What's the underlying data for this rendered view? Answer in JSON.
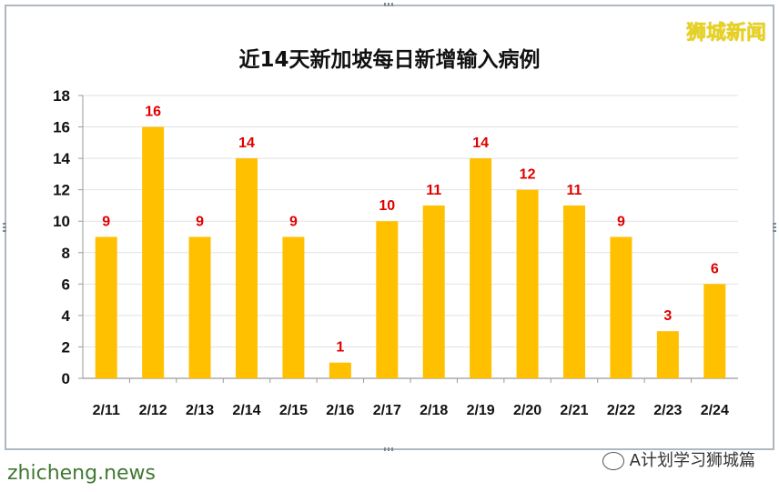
{
  "watermark": {
    "brand": "狮城新闻",
    "site": "zhicheng.news",
    "account": "A计划学习狮城篇"
  },
  "chart_data": {
    "type": "bar",
    "title": "近14天新加坡每日新增输入病例",
    "categories": [
      "2/11",
      "2/12",
      "2/13",
      "2/14",
      "2/15",
      "2/16",
      "2/17",
      "2/18",
      "2/19",
      "2/20",
      "2/21",
      "2/22",
      "2/23",
      "2/24"
    ],
    "values": [
      9,
      16,
      9,
      14,
      9,
      1,
      10,
      11,
      14,
      12,
      11,
      9,
      3,
      6
    ],
    "ylim": [
      0,
      18
    ],
    "yticks": [
      0,
      2,
      4,
      6,
      8,
      10,
      12,
      14,
      16,
      18
    ],
    "grid": true,
    "legend": "none",
    "colors": {
      "bar": "#ffc000",
      "value_label": "#e00000",
      "grid": "#e2e2e2",
      "axis": "#9a9a9a"
    }
  }
}
